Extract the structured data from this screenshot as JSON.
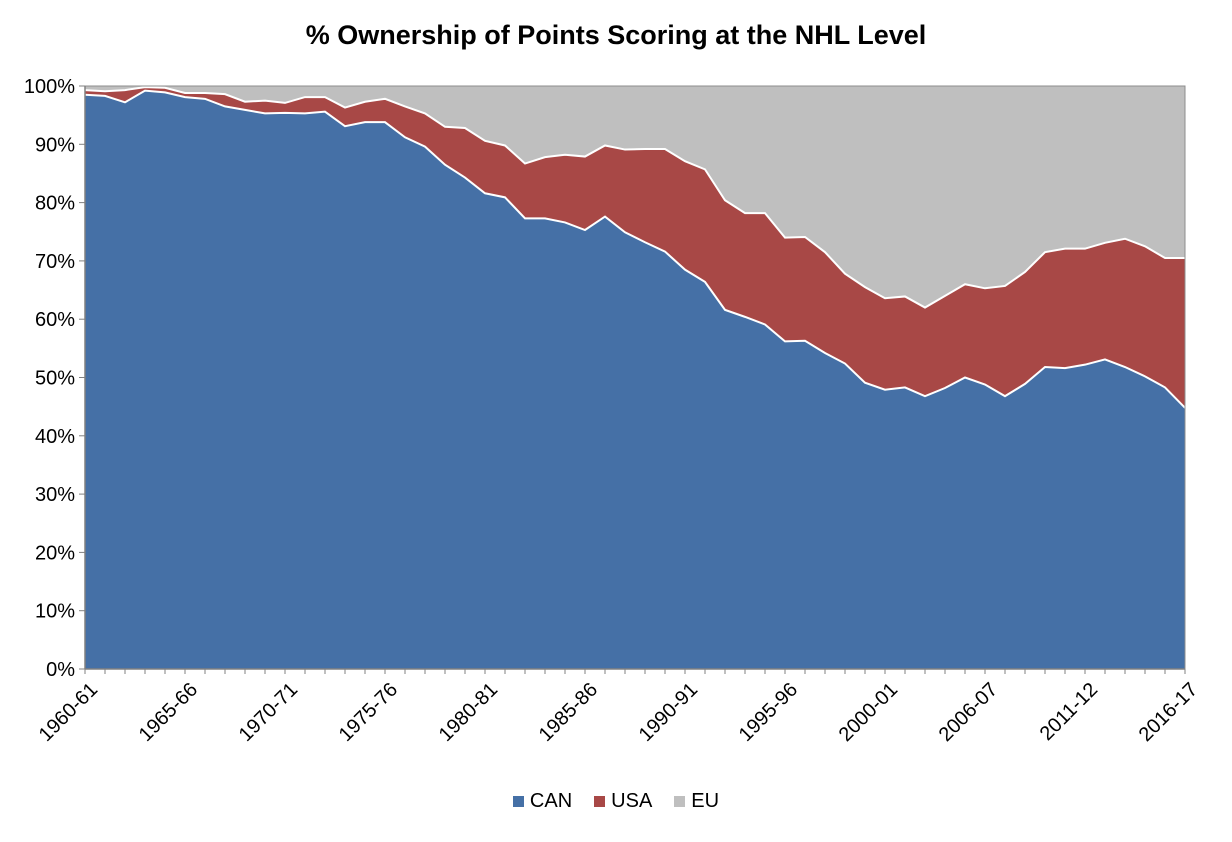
{
  "chart_data": {
    "type": "area",
    "stacked": true,
    "title": "% Ownership of Points Scoring at the NHL Level",
    "xlabel": "",
    "ylabel": "",
    "ylim": [
      0,
      100
    ],
    "y_ticks": [
      "0%",
      "10%",
      "20%",
      "30%",
      "40%",
      "50%",
      "60%",
      "70%",
      "80%",
      "90%",
      "100%"
    ],
    "x_tick_labels": [
      "1960-61",
      "1965-66",
      "1970-71",
      "1975-76",
      "1980-81",
      "1985-86",
      "1990-91",
      "1995-96",
      "2000-01",
      "2006-07",
      "2011-12",
      "2016-17"
    ],
    "categories": [
      "1960-61",
      "1961-62",
      "1962-63",
      "1963-64",
      "1964-65",
      "1965-66",
      "1966-67",
      "1967-68",
      "1968-69",
      "1969-70",
      "1970-71",
      "1971-72",
      "1972-73",
      "1973-74",
      "1974-75",
      "1975-76",
      "1976-77",
      "1977-78",
      "1978-79",
      "1979-80",
      "1980-81",
      "1981-82",
      "1982-83",
      "1983-84",
      "1984-85",
      "1985-86",
      "1986-87",
      "1987-88",
      "1988-89",
      "1989-90",
      "1990-91",
      "1991-92",
      "1992-93",
      "1993-94",
      "1994-95",
      "1995-96",
      "1996-97",
      "1997-98",
      "1998-99",
      "1999-00",
      "2000-01",
      "2001-02",
      "2002-03",
      "2003-04",
      "2005-06",
      "2006-07",
      "2007-08",
      "2008-09",
      "2009-10",
      "2010-11",
      "2011-12",
      "2012-13",
      "2013-14",
      "2014-15",
      "2015-16",
      "2016-17"
    ],
    "series": [
      {
        "name": "CAN",
        "color": "#4570A6",
        "values": [
          98.5,
          98.3,
          97.2,
          99.2,
          98.9,
          98.1,
          97.8,
          96.5,
          95.9,
          95.3,
          95.4,
          95.3,
          95.6,
          93.1,
          93.8,
          93.8,
          91.2,
          89.6,
          86.5,
          84.3,
          81.6,
          80.9,
          77.3,
          77.3,
          76.6,
          75.3,
          77.6,
          74.9,
          73.2,
          71.6,
          68.5,
          66.4,
          61.6,
          60.4,
          59.1,
          56.2,
          56.3,
          54.2,
          52.4,
          49.1,
          47.9,
          48.3,
          46.8,
          48.2,
          50.0,
          48.8,
          46.8,
          48.9,
          51.8,
          51.6,
          52.2,
          53.1,
          51.8,
          50.2,
          48.3,
          44.8
        ]
      },
      {
        "name": "USA",
        "color": "#A84846",
        "values": [
          0.8,
          0.8,
          2.1,
          0.6,
          0.8,
          0.7,
          1.0,
          2.1,
          1.4,
          2.2,
          1.7,
          2.8,
          2.5,
          3.2,
          3.5,
          4.0,
          5.3,
          5.7,
          6.5,
          8.5,
          9.0,
          8.9,
          9.4,
          10.5,
          11.6,
          12.6,
          12.2,
          14.2,
          16.0,
          17.6,
          18.6,
          19.3,
          18.8,
          17.8,
          19.1,
          17.8,
          17.8,
          17.3,
          15.4,
          16.4,
          15.7,
          15.6,
          15.2,
          15.8,
          16.0,
          16.5,
          18.9,
          19.2,
          19.7,
          20.5,
          19.9,
          20.0,
          22.0,
          22.3,
          22.2,
          25.7
        ]
      },
      {
        "name": "EU",
        "color": "#BFBFBF",
        "values": [
          0.7,
          0.9,
          0.7,
          0.2,
          0.3,
          1.2,
          1.2,
          1.4,
          2.7,
          2.5,
          2.9,
          1.9,
          1.9,
          3.7,
          2.7,
          2.2,
          3.5,
          4.7,
          7.0,
          7.2,
          9.4,
          10.2,
          13.3,
          12.2,
          11.8,
          12.1,
          10.2,
          10.9,
          10.8,
          10.8,
          12.9,
          14.3,
          19.6,
          21.8,
          21.8,
          26.0,
          25.9,
          28.5,
          32.2,
          34.5,
          36.4,
          36.1,
          38.0,
          36.0,
          34.0,
          34.7,
          34.3,
          31.9,
          28.5,
          27.9,
          27.9,
          26.9,
          26.2,
          27.5,
          29.5,
          29.5
        ]
      }
    ],
    "legend": [
      "CAN",
      "USA",
      "EU"
    ],
    "legend_position": "bottom",
    "grid": false
  }
}
